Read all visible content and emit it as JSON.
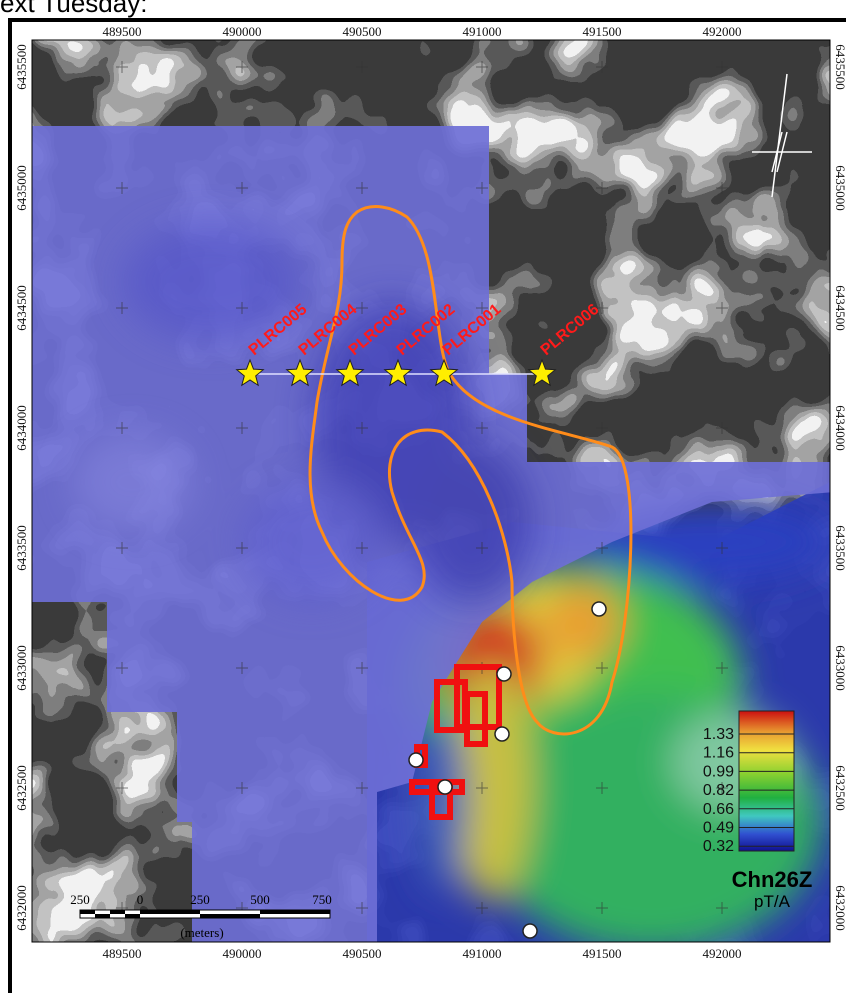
{
  "caption": "ext Tuesday:",
  "map": {
    "x_ticks": [
      "489500",
      "490000",
      "490500",
      "491000",
      "491500",
      "492000"
    ],
    "y_ticks_left": [
      "6435500",
      "6435000",
      "6434500",
      "6434000",
      "6433500",
      "6433000",
      "6432500",
      "6432000"
    ],
    "y_ticks_right": [
      "6435500",
      "6435000",
      "6434500",
      "6434000",
      "6433500",
      "6433000",
      "6432500",
      "6432000"
    ]
  },
  "drillholes": [
    {
      "label": "PLRC005"
    },
    {
      "label": "PLRC004"
    },
    {
      "label": "PLRC003"
    },
    {
      "label": "PLRC002"
    },
    {
      "label": "PLRC001"
    },
    {
      "label": "PLRC006"
    }
  ],
  "legend": {
    "values": [
      "1.33",
      "1.16",
      "0.99",
      "0.82",
      "0.66",
      "0.49",
      "0.32"
    ],
    "title": "Chn26Z",
    "unit": "pT/A",
    "colors": [
      "#cc1010",
      "#e89a30",
      "#f0e040",
      "#88d030",
      "#20b040",
      "#40c8c0",
      "#3050d0",
      "#101090"
    ]
  },
  "scalebar": {
    "ticks": [
      "250",
      "0",
      "250",
      "500",
      "750"
    ],
    "unit": "(meters)"
  },
  "colors": {
    "label_red": "#ff1a1a",
    "orange_outline": "#ff8c1a",
    "star_fill": "#ffee00",
    "blue_overlay": "#6f6fd8"
  }
}
